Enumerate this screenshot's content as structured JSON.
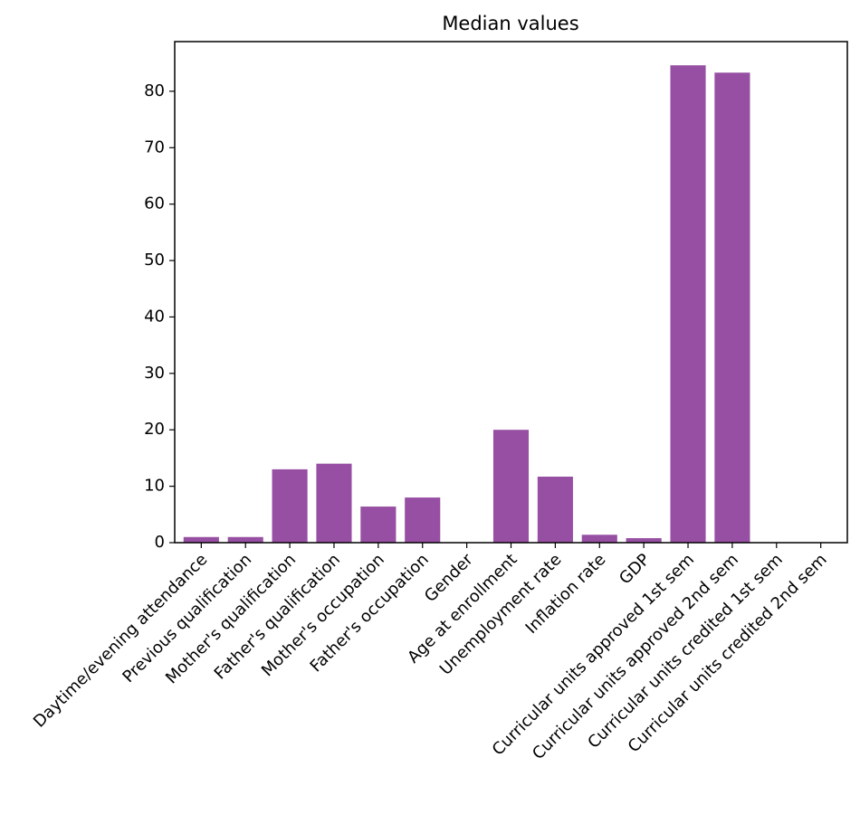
{
  "chart_data": {
    "type": "bar",
    "title": "Median values",
    "xlabel": "",
    "ylabel": "",
    "categories": [
      "Daytime/evening attendance",
      "Previous qualification",
      "Mother's qualification",
      "Father's qualification",
      "Mother's occupation",
      "Father's occupation",
      "Gender",
      "Age at enrollment",
      "Unemployment rate",
      "Inflation rate",
      "GDP",
      "Curricular units approved 1st sem",
      "Curricular units approved 2nd sem",
      "Curricular units credited 1st sem",
      "Curricular units credited 2nd sem"
    ],
    "values": [
      1,
      1,
      13,
      14,
      6.4,
      8,
      0,
      20,
      11.7,
      1.4,
      0.8,
      84.6,
      83.3,
      0,
      0
    ],
    "ylim": [
      0,
      88.8
    ],
    "yticks": [
      0,
      10,
      20,
      30,
      40,
      50,
      60,
      70,
      80
    ],
    "bar_color": "#964fa2",
    "grid": false,
    "legend": "none"
  }
}
